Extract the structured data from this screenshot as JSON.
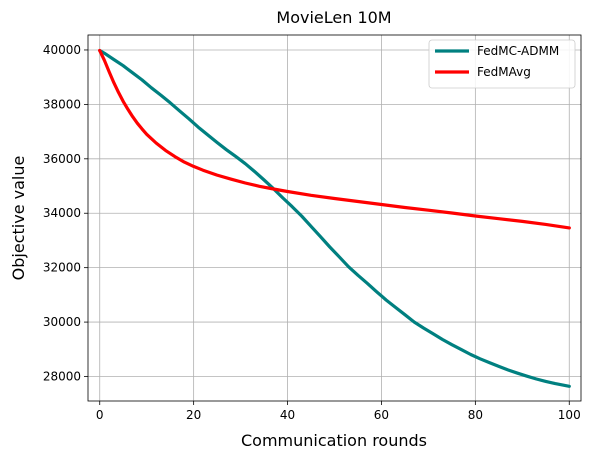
{
  "chart_data": {
    "type": "line",
    "title": "MovieLen 10M",
    "xlabel": "Communication rounds",
    "ylabel": "Objective value",
    "xlim": [
      -2.5,
      102.5
    ],
    "ylim": [
      27100,
      40550
    ],
    "xticks": [
      0,
      20,
      40,
      60,
      80,
      100
    ],
    "yticks": [
      28000,
      30000,
      32000,
      34000,
      36000,
      38000,
      40000
    ],
    "grid": true,
    "legend_position": "top-right",
    "series": [
      {
        "name": "FedMC-ADMM",
        "color": "#008080",
        "x": [
          0,
          1,
          3,
          5,
          7,
          9,
          11,
          13,
          15,
          17,
          19,
          21,
          23,
          25,
          27,
          29,
          31,
          33,
          35,
          37,
          39,
          41,
          43,
          45,
          47,
          49,
          51,
          53,
          55,
          57,
          59,
          61,
          63,
          65,
          67,
          69,
          71,
          73,
          75,
          77,
          79,
          81,
          83,
          85,
          87,
          89,
          91,
          93,
          95,
          97,
          100
        ],
        "y": [
          39980,
          39880,
          39650,
          39420,
          39160,
          38900,
          38610,
          38340,
          38060,
          37760,
          37470,
          37160,
          36880,
          36600,
          36330,
          36080,
          35820,
          35530,
          35220,
          34900,
          34560,
          34240,
          33900,
          33520,
          33140,
          32760,
          32400,
          32030,
          31720,
          31420,
          31110,
          30810,
          30540,
          30270,
          30000,
          29780,
          29570,
          29360,
          29170,
          28990,
          28810,
          28650,
          28510,
          28370,
          28240,
          28120,
          28010,
          27910,
          27820,
          27740,
          27640
        ]
      },
      {
        "name": "FedMAvg",
        "color": "#ff0000",
        "x": [
          0,
          1,
          2,
          3,
          4,
          5,
          6,
          7,
          8,
          9,
          10,
          12,
          14,
          16,
          18,
          20,
          22,
          25,
          28,
          31,
          34,
          37,
          40,
          45,
          50,
          55,
          60,
          65,
          70,
          75,
          80,
          85,
          90,
          95,
          100
        ],
        "y": [
          39980,
          39620,
          39200,
          38800,
          38440,
          38110,
          37820,
          37550,
          37310,
          37100,
          36900,
          36580,
          36310,
          36080,
          35880,
          35720,
          35580,
          35400,
          35250,
          35110,
          34990,
          34890,
          34800,
          34660,
          34540,
          34430,
          34320,
          34210,
          34110,
          34010,
          33900,
          33800,
          33700,
          33590,
          33460
        ]
      }
    ]
  }
}
